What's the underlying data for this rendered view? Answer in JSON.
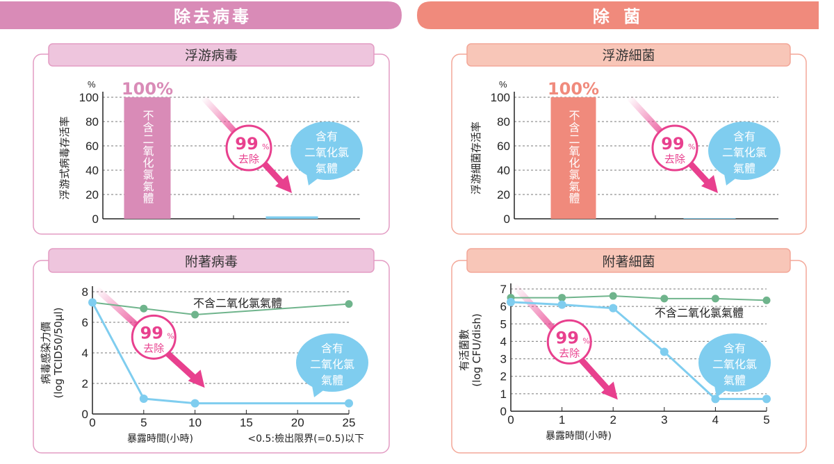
{
  "left_header": "除去病毒",
  "right_header": "除 菌",
  "panels": [
    {
      "title": "浮游病毒"
    },
    {
      "title": "浮游細菌"
    },
    {
      "title": "附著病毒"
    },
    {
      "title": "附著細菌"
    }
  ],
  "annotation": {
    "pct": "99",
    "pct_unit": "%",
    "removed": "去除",
    "bar_top": "100%",
    "with_line1": "含有",
    "with_line2": "二氧化氯",
    "with_line3": "氣體",
    "without": "不含二氧化氯氣體"
  },
  "colors": {
    "pink": "#d98bb7",
    "salmon": "#f08a7c",
    "blue": "#7fcdef",
    "green": "#6fb48c",
    "magenta": "#e8408e"
  },
  "chart_data": [
    {
      "type": "bar",
      "ylabel": "浮游式病毒存活率",
      "unit": "%",
      "ylim": [
        0,
        100
      ],
      "yticks": [
        0,
        20,
        40,
        60,
        80,
        100
      ],
      "categories": [
        "不含二氧化氯氣體",
        "含有二氧化氯氣體"
      ],
      "values": [
        100,
        2
      ],
      "grid": true
    },
    {
      "type": "bar",
      "ylabel": "浮游細菌存活率",
      "unit": "%",
      "ylim": [
        0,
        100
      ],
      "yticks": [
        0,
        20,
        40,
        60,
        80,
        100
      ],
      "categories": [
        "不含二氧化氯氣體",
        "含有二氧化氯氣體"
      ],
      "values": [
        100,
        0.5
      ],
      "grid": true
    },
    {
      "type": "line",
      "ylabel": "病毒感染力價",
      "ylabel2": "(log TCID50/50μl)",
      "xlabel": "暴露時間(小時)",
      "note": "<0.5:檢出限界(=0.5)以下",
      "xlim": [
        0,
        25
      ],
      "ylim": [
        0,
        8
      ],
      "xticks": [
        0,
        5,
        10,
        15,
        20,
        25
      ],
      "yticks": [
        0,
        2,
        4,
        6,
        8
      ],
      "grid": true,
      "series": [
        {
          "name": "不含二氧化氯氣體",
          "x": [
            0,
            5,
            10,
            25
          ],
          "y": [
            7.3,
            6.9,
            6.5,
            7.2
          ]
        },
        {
          "name": "含有二氧化氯氣體",
          "x": [
            0,
            5,
            10,
            25
          ],
          "y": [
            7.3,
            1.0,
            0.7,
            0.7
          ]
        }
      ]
    },
    {
      "type": "line",
      "ylabel": "有活菌數",
      "ylabel2": "(log CFU/dish)",
      "xlabel": "暴露時間(小時)",
      "xlim": [
        0,
        5
      ],
      "ylim": [
        0,
        7
      ],
      "xticks": [
        0,
        1,
        2,
        3,
        4,
        5
      ],
      "yticks": [
        0,
        1,
        2,
        3,
        4,
        5,
        6,
        7
      ],
      "grid": true,
      "series": [
        {
          "name": "不含二氧化氯氣體",
          "x": [
            0,
            1,
            2,
            3,
            4,
            5
          ],
          "y": [
            6.5,
            6.5,
            6.6,
            6.45,
            6.45,
            6.35
          ]
        },
        {
          "name": "含有二氧化氯氣體",
          "x": [
            0,
            1,
            2,
            3,
            4,
            5
          ],
          "y": [
            6.25,
            6.1,
            5.9,
            3.4,
            0.7,
            0.7
          ]
        }
      ]
    }
  ]
}
